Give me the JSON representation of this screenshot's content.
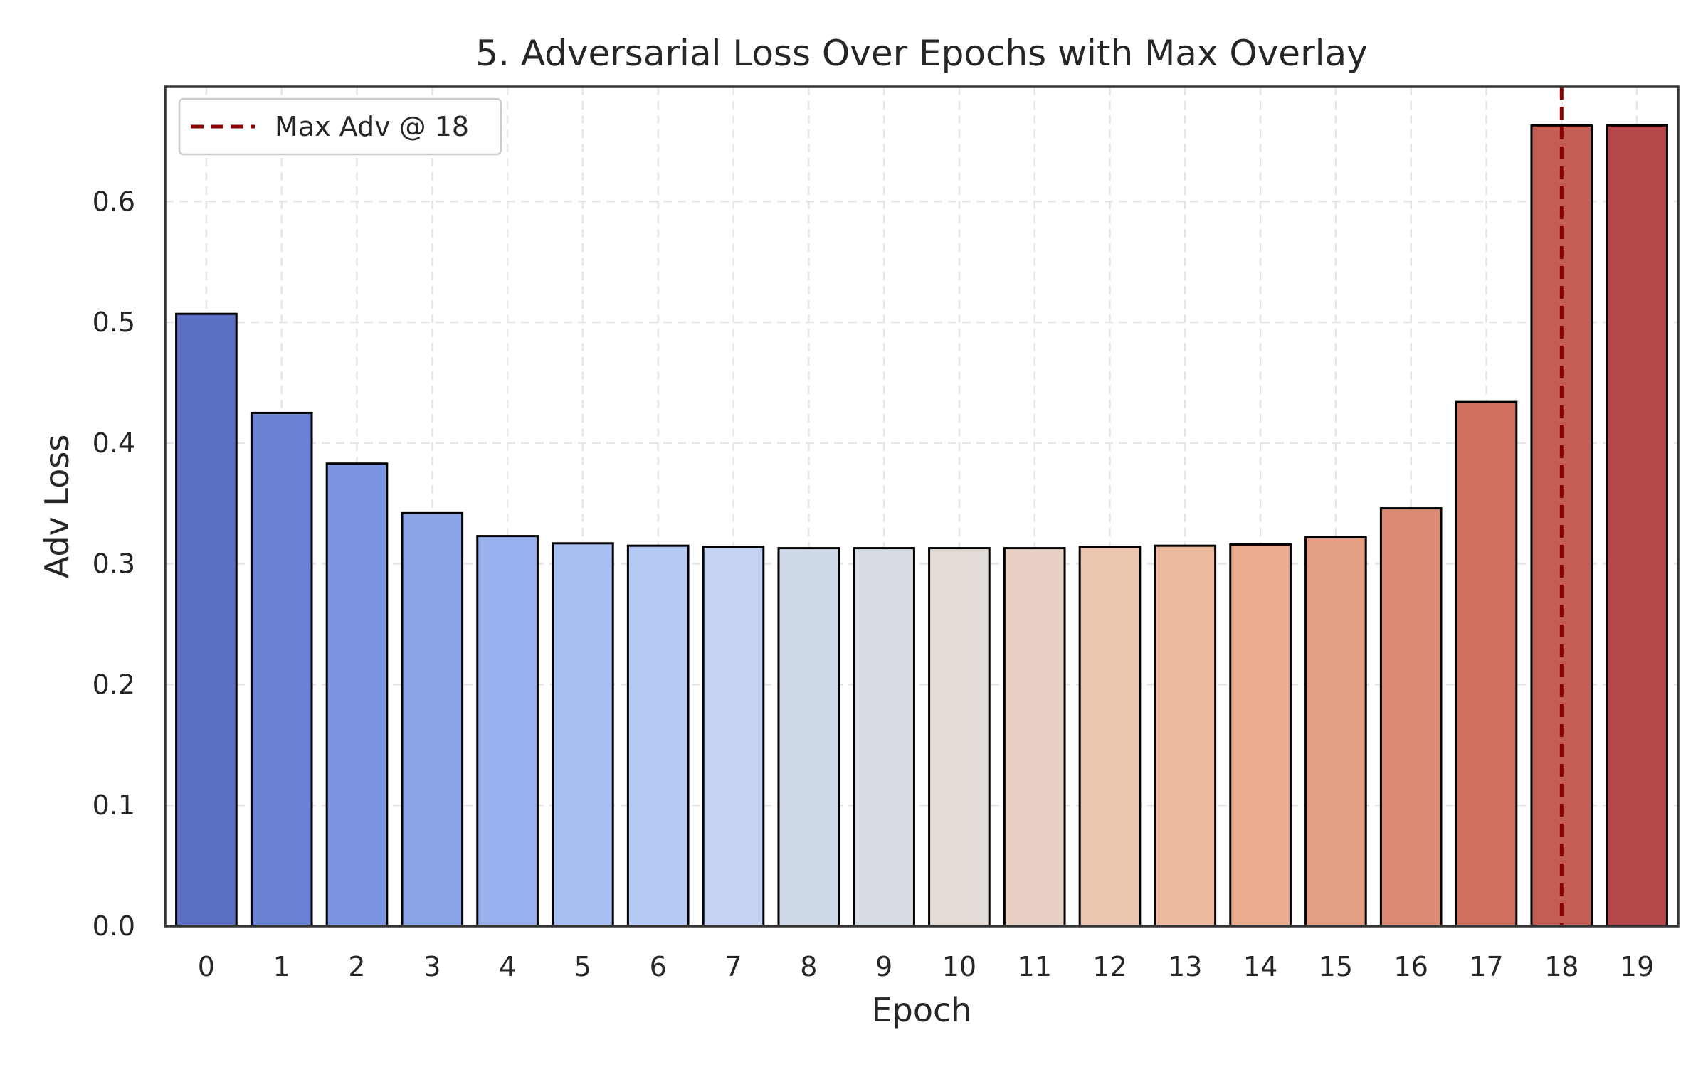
{
  "chart_data": {
    "type": "bar",
    "title": "5. Adversarial Loss Over Epochs with Max Overlay",
    "xlabel": "Epoch",
    "ylabel": "Adv Loss",
    "categories": [
      "0",
      "1",
      "2",
      "3",
      "4",
      "5",
      "6",
      "7",
      "8",
      "9",
      "10",
      "11",
      "12",
      "13",
      "14",
      "15",
      "16",
      "17",
      "18",
      "19"
    ],
    "values": [
      0.507,
      0.425,
      0.383,
      0.342,
      0.323,
      0.317,
      0.315,
      0.314,
      0.313,
      0.313,
      0.313,
      0.313,
      0.314,
      0.315,
      0.316,
      0.322,
      0.346,
      0.434,
      0.663,
      0.663
    ],
    "colors": [
      "#5b6fc5",
      "#6a82d4",
      "#7b95e0",
      "#8aa4e8",
      "#99b2ef",
      "#a8bff4",
      "#b6caf6",
      "#c4d3f3",
      "#cfd9ea",
      "#d8dce3",
      "#e2dbd6",
      "#e9d0c4",
      "#ecc5b1",
      "#edb99f",
      "#eaab8e",
      "#e49e84",
      "#dc8a73",
      "#cf6f5f",
      "#c45e54",
      "#b54649"
    ],
    "ylim": [
      0,
      0.695
    ],
    "yticks": [
      "0.0",
      "0.1",
      "0.2",
      "0.3",
      "0.4",
      "0.5",
      "0.6"
    ],
    "grid": true,
    "overlay": {
      "type": "vline",
      "x": 18,
      "label": "Max Adv @ 18",
      "color": "#8b0000",
      "style": "dashed"
    },
    "legend": {
      "position": "top-left",
      "entries": [
        "Max Adv @ 18"
      ]
    }
  }
}
